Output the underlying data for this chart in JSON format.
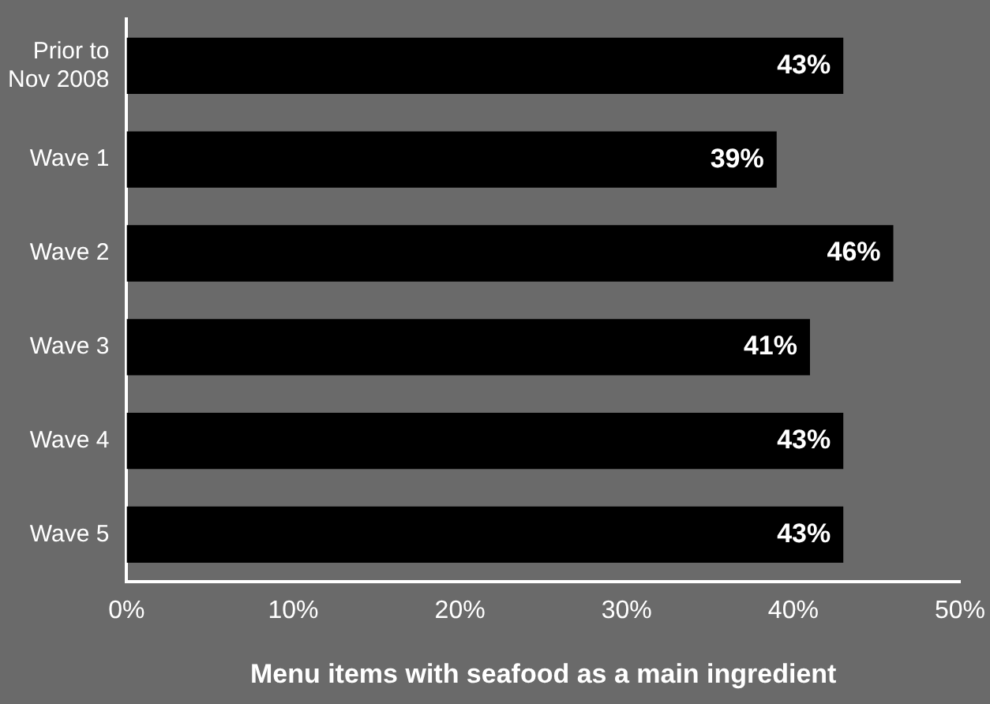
{
  "chart_data": {
    "type": "bar",
    "orientation": "horizontal",
    "xlabel": "Menu items with seafood as a main ingredient",
    "categories": [
      "Prior to\nNov 2008",
      "Wave 1",
      "Wave 2",
      "Wave 3",
      "Wave 4",
      "Wave 5"
    ],
    "values": [
      43,
      39,
      46,
      41,
      43,
      43
    ],
    "value_labels": [
      "43%",
      "39%",
      "46%",
      "41%",
      "43%",
      "43%"
    ],
    "color": "#000000",
    "xlim": [
      0,
      50
    ],
    "xticks": [
      {
        "value": 0,
        "label": "0%"
      },
      {
        "value": 10,
        "label": "10%"
      },
      {
        "value": 20,
        "label": "20%"
      },
      {
        "value": 30,
        "label": "30%"
      },
      {
        "value": 40,
        "label": "40%"
      },
      {
        "value": 50,
        "label": "50%"
      }
    ],
    "grid": false,
    "legend": false
  }
}
